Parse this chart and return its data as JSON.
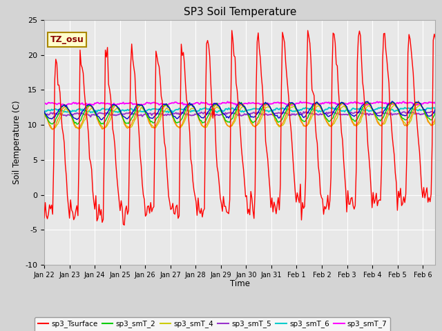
{
  "title": "SP3 Soil Temperature",
  "ylabel": "Soil Temperature (C)",
  "xlabel": "Time",
  "tz_label": "TZ_osu",
  "ylim": [
    -10,
    25
  ],
  "xtick_labels": [
    "Jan 22",
    "Jan 23",
    "Jan 24",
    "Jan 25",
    "Jan 26",
    "Jan 27",
    "Jan 28",
    "Jan 29",
    "Jan 30",
    "Jan 31",
    "Feb 1",
    "Feb 2",
    "Feb 3",
    "Feb 4",
    "Feb 5",
    "Feb 6"
  ],
  "fig_bg_color": "#d4d4d4",
  "plot_bg_color": "#e8e8e8",
  "grid_color": "#ffffff",
  "series_colors": {
    "sp3_Tsurface": "#ff0000",
    "sp3_smT_1": "#0000cc",
    "sp3_smT_2": "#00cc00",
    "sp3_smT_3": "#ff8800",
    "sp3_smT_4": "#cccc00",
    "sp3_smT_5": "#9933cc",
    "sp3_smT_6": "#00cccc",
    "sp3_smT_7": "#ff00ff"
  }
}
